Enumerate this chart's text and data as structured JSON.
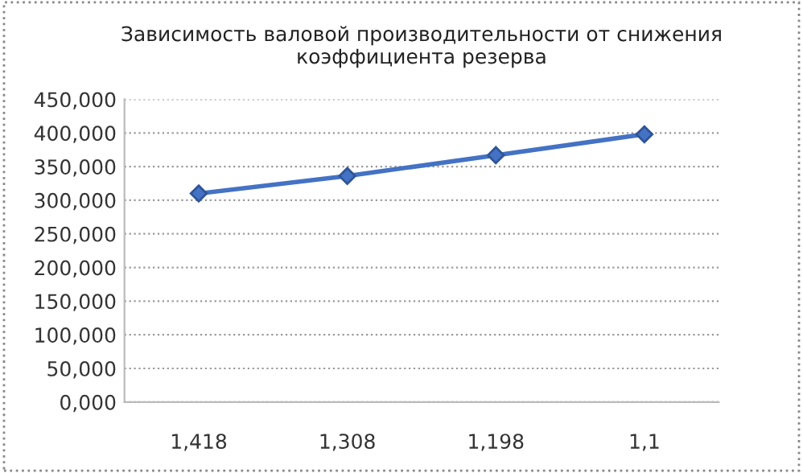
{
  "chart_data": {
    "type": "line",
    "title": "Зависимость валовой производительности от снижения\nкоэффициента резерва",
    "categories": [
      "1,418",
      "1,308",
      "1,198",
      "1,1"
    ],
    "series": [
      {
        "color": "#4472c4",
        "values": [
          310,
          336,
          367,
          398
        ]
      }
    ],
    "ylim": [
      0,
      450
    ],
    "yticks": [
      {
        "value": 0,
        "label": "0,000"
      },
      {
        "value": 50,
        "label": "50,000"
      },
      {
        "value": 100,
        "label": "100,000"
      },
      {
        "value": 150,
        "label": "150,000"
      },
      {
        "value": 200,
        "label": "200,000"
      },
      {
        "value": 250,
        "label": "250,000"
      },
      {
        "value": 300,
        "label": "300,000"
      },
      {
        "value": 350,
        "label": "350,000"
      },
      {
        "value": 400,
        "label": "400,000"
      },
      {
        "value": 450,
        "label": "450,000"
      }
    ],
    "grid": "y",
    "marker": "diamond",
    "line_style": "solid"
  }
}
